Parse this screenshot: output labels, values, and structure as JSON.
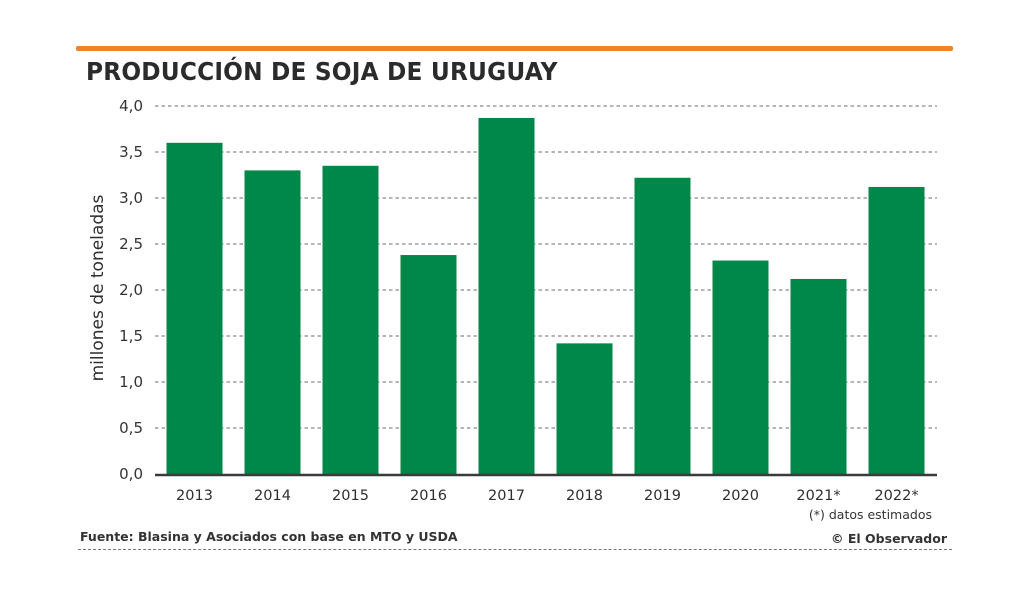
{
  "chart_data": {
    "type": "bar",
    "title": "PRODUCCIÓN DE SOJA DE URUGUAY",
    "xlabel": "",
    "ylabel": "millones de toneladas",
    "categories": [
      "2013",
      "2014",
      "2015",
      "2016",
      "2017",
      "2018",
      "2019",
      "2020",
      "2021*",
      "2022*"
    ],
    "values": [
      3.6,
      3.3,
      3.35,
      2.38,
      3.87,
      1.42,
      3.22,
      2.32,
      2.12,
      3.12
    ],
    "ylim": [
      0,
      4.0
    ],
    "yticks": [
      0,
      0.5,
      1.0,
      1.5,
      2.0,
      2.5,
      3.0,
      3.5,
      4.0
    ],
    "ytick_labels": [
      "0,0",
      "0,5",
      "1,0",
      "1,5",
      "2,0",
      "2,5",
      "3,0",
      "3,5",
      "4,0"
    ],
    "grid": true,
    "grid_style": "dashed horizontal",
    "legend": "none",
    "annotations": [
      "(*) datos estimados"
    ]
  },
  "colors": {
    "bar": "#00884A",
    "accent_rule": "#E8862F",
    "grid": "#8a8a8a",
    "text": "#2f2f2f"
  },
  "footer": {
    "note": "(*) datos estimados",
    "source": "Fuente: Blasina y Asociados con base en MTO y USDA",
    "credit": "© El Observador"
  }
}
